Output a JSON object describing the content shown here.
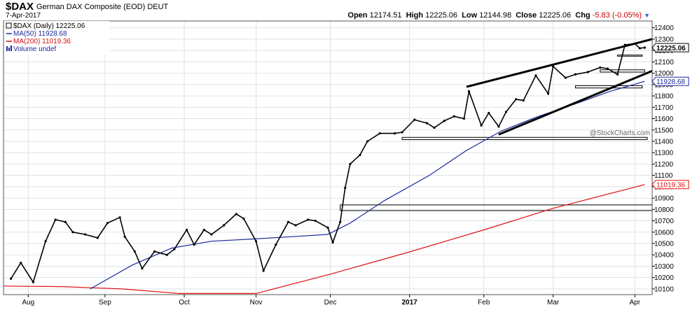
{
  "header": {
    "symbol": "$DAX",
    "description": "German DAX Composite (EOD) DEUT",
    "date": "7-Apr-2017",
    "open_label": "Open",
    "open": "12174.51",
    "high_label": "High",
    "high": "12225.06",
    "low_label": "Low",
    "low": "12144.98",
    "close_label": "Close",
    "close": "12225.06",
    "chg_label": "Chg",
    "chg": "-5.83 (-0.05%)",
    "chg_icon": "triangle-down-icon"
  },
  "watermark": "@StockCharts.com",
  "legend": [
    {
      "text": "$DAX (Daily) 12225.06",
      "color": "#000000",
      "icon": "candle-icon"
    },
    {
      "text": "MA(50) 11928.68",
      "color": "#1a2a9c",
      "icon": "line-icon"
    },
    {
      "text": "MA(200) 11019.36",
      "color": "#cc1111",
      "icon": "line-icon"
    },
    {
      "text": "Volume undef",
      "color": "#1a2a9c",
      "icon": "bars-icon"
    }
  ],
  "colors": {
    "price": "#000000",
    "ma50": "#1a2a9c",
    "ma200": "#e01010",
    "grid": "#dde3ea",
    "plot_bg": "#ffffff"
  },
  "chart_data": {
    "type": "line",
    "title": "$DAX German DAX Composite (EOD) DEUT",
    "ylim": [
      10050,
      12460
    ],
    "y_scale": "linear",
    "grid": true,
    "legend_position": "top-left",
    "y_ticks": [
      10100,
      10200,
      10300,
      10400,
      10500,
      10600,
      10700,
      10800,
      10900,
      11000,
      11100,
      11200,
      11300,
      11400,
      11500,
      11600,
      11700,
      11800,
      11900,
      12000,
      12100,
      12200,
      12300,
      12400
    ],
    "x_ticks": [
      {
        "label": "Aug",
        "date": "2016-08-01",
        "bold": false
      },
      {
        "label": "Sep",
        "date": "2016-09-01",
        "bold": false
      },
      {
        "label": "Oct",
        "date": "2016-10-03",
        "bold": false
      },
      {
        "label": "Nov",
        "date": "2016-11-01",
        "bold": false
      },
      {
        "label": "Dec",
        "date": "2016-12-01",
        "bold": false
      },
      {
        "label": "2017",
        "date": "2017-01-02",
        "bold": true
      },
      {
        "label": "Feb",
        "date": "2017-02-01",
        "bold": false
      },
      {
        "label": "Mar",
        "date": "2017-03-01",
        "bold": false
      },
      {
        "label": "Apr",
        "date": "2017-04-03",
        "bold": false
      }
    ],
    "x_range": [
      "2016-07-22",
      "2017-04-10"
    ],
    "series": [
      {
        "name": "$DAX (Daily) 12225.06",
        "kind": "price",
        "points": [
          {
            "date": "2016-07-25",
            "close": 10190
          },
          {
            "date": "2016-07-29",
            "close": 10330
          },
          {
            "date": "2016-08-03",
            "close": 10160
          },
          {
            "date": "2016-08-08",
            "close": 10520
          },
          {
            "date": "2016-08-12",
            "close": 10710
          },
          {
            "date": "2016-08-16",
            "close": 10690
          },
          {
            "date": "2016-08-19",
            "close": 10600
          },
          {
            "date": "2016-08-24",
            "close": 10580
          },
          {
            "date": "2016-08-29",
            "close": 10550
          },
          {
            "date": "2016-09-02",
            "close": 10680
          },
          {
            "date": "2016-09-07",
            "close": 10730
          },
          {
            "date": "2016-09-09",
            "close": 10560
          },
          {
            "date": "2016-09-13",
            "close": 10430
          },
          {
            "date": "2016-09-16",
            "close": 10280
          },
          {
            "date": "2016-09-21",
            "close": 10430
          },
          {
            "date": "2016-09-26",
            "close": 10400
          },
          {
            "date": "2016-09-29",
            "close": 10450
          },
          {
            "date": "2016-10-04",
            "close": 10620
          },
          {
            "date": "2016-10-07",
            "close": 10490
          },
          {
            "date": "2016-10-11",
            "close": 10620
          },
          {
            "date": "2016-10-14",
            "close": 10580
          },
          {
            "date": "2016-10-19",
            "close": 10660
          },
          {
            "date": "2016-10-24",
            "close": 10760
          },
          {
            "date": "2016-10-27",
            "close": 10720
          },
          {
            "date": "2016-11-01",
            "close": 10520
          },
          {
            "date": "2016-11-04",
            "close": 10260
          },
          {
            "date": "2016-11-09",
            "close": 10490
          },
          {
            "date": "2016-11-14",
            "close": 10690
          },
          {
            "date": "2016-11-17",
            "close": 10660
          },
          {
            "date": "2016-11-22",
            "close": 10710
          },
          {
            "date": "2016-11-25",
            "close": 10700
          },
          {
            "date": "2016-11-30",
            "close": 10640
          },
          {
            "date": "2016-12-02",
            "close": 10510
          },
          {
            "date": "2016-12-05",
            "close": 10690
          },
          {
            "date": "2016-12-07",
            "close": 10990
          },
          {
            "date": "2016-12-09",
            "close": 11200
          },
          {
            "date": "2016-12-13",
            "close": 11280
          },
          {
            "date": "2016-12-16",
            "close": 11400
          },
          {
            "date": "2016-12-21",
            "close": 11470
          },
          {
            "date": "2016-12-27",
            "close": 11470
          },
          {
            "date": "2016-12-30",
            "close": 11480
          },
          {
            "date": "2017-01-04",
            "close": 11590
          },
          {
            "date": "2017-01-09",
            "close": 11560
          },
          {
            "date": "2017-01-12",
            "close": 11520
          },
          {
            "date": "2017-01-16",
            "close": 11580
          },
          {
            "date": "2017-01-20",
            "close": 11620
          },
          {
            "date": "2017-01-24",
            "close": 11600
          },
          {
            "date": "2017-01-26",
            "close": 11840
          },
          {
            "date": "2017-01-31",
            "close": 11540
          },
          {
            "date": "2017-02-03",
            "close": 11650
          },
          {
            "date": "2017-02-07",
            "close": 11530
          },
          {
            "date": "2017-02-10",
            "close": 11660
          },
          {
            "date": "2017-02-14",
            "close": 11770
          },
          {
            "date": "2017-02-17",
            "close": 11760
          },
          {
            "date": "2017-02-22",
            "close": 11980
          },
          {
            "date": "2017-02-27",
            "close": 11820
          },
          {
            "date": "2017-03-01",
            "close": 12060
          },
          {
            "date": "2017-03-06",
            "close": 11960
          },
          {
            "date": "2017-03-10",
            "close": 11990
          },
          {
            "date": "2017-03-15",
            "close": 12010
          },
          {
            "date": "2017-03-20",
            "close": 12050
          },
          {
            "date": "2017-03-23",
            "close": 12040
          },
          {
            "date": "2017-03-27",
            "close": 11990
          },
          {
            "date": "2017-03-30",
            "close": 12250
          },
          {
            "date": "2017-04-03",
            "close": 12260
          },
          {
            "date": "2017-04-05",
            "close": 12220
          },
          {
            "date": "2017-04-07",
            "close": 12225
          }
        ]
      },
      {
        "name": "MA(50) 11928.68",
        "kind": "ma50",
        "points": [
          {
            "date": "2016-08-26",
            "value": 10100
          },
          {
            "date": "2016-09-12",
            "value": 10310
          },
          {
            "date": "2016-09-28",
            "value": 10460
          },
          {
            "date": "2016-10-14",
            "value": 10520
          },
          {
            "date": "2016-10-31",
            "value": 10540
          },
          {
            "date": "2016-11-15",
            "value": 10560
          },
          {
            "date": "2016-11-30",
            "value": 10580
          },
          {
            "date": "2016-12-09",
            "value": 10680
          },
          {
            "date": "2016-12-23",
            "value": 10880
          },
          {
            "date": "2017-01-10",
            "value": 11100
          },
          {
            "date": "2017-01-25",
            "value": 11320
          },
          {
            "date": "2017-02-08",
            "value": 11490
          },
          {
            "date": "2017-02-23",
            "value": 11620
          },
          {
            "date": "2017-03-10",
            "value": 11730
          },
          {
            "date": "2017-03-24",
            "value": 11840
          },
          {
            "date": "2017-04-07",
            "value": 11928.68
          }
        ]
      },
      {
        "name": "MA(200) 11019.36",
        "kind": "ma200",
        "points": [
          {
            "date": "2016-07-22",
            "value": 10125
          },
          {
            "date": "2016-08-15",
            "value": 10120
          },
          {
            "date": "2016-09-08",
            "value": 10100
          },
          {
            "date": "2016-10-01",
            "value": 10060
          },
          {
            "date": "2016-11-01",
            "value": 10060
          },
          {
            "date": "2016-12-01",
            "value": 10230
          },
          {
            "date": "2017-01-01",
            "value": 10420
          },
          {
            "date": "2017-02-01",
            "value": 10620
          },
          {
            "date": "2017-03-01",
            "value": 10810
          },
          {
            "date": "2017-04-07",
            "value": 11019.36
          }
        ]
      }
    ],
    "value_tags": [
      {
        "value": 12225.06,
        "label": "12225.06",
        "kind": "price"
      },
      {
        "value": 11928.68,
        "label": "11928.68",
        "kind": "ma50"
      },
      {
        "value": 11019.36,
        "label": "11019.36",
        "kind": "ma200"
      }
    ],
    "trendlines": [
      {
        "from": [
          "2017-01-25",
          11880
        ],
        "to": [
          "2017-04-10",
          12300
        ]
      },
      {
        "from": [
          "2017-02-07",
          11460
        ],
        "to": [
          "2017-04-10",
          12020
        ]
      }
    ],
    "support_boxes": [
      {
        "from": "2016-12-30",
        "to": "2017-04-08",
        "top": 11435,
        "bottom": 11415
      },
      {
        "from": "2016-12-05",
        "to": "2017-04-10",
        "top": 10840,
        "bottom": 10790
      },
      {
        "from": "2017-03-10",
        "to": "2017-04-06",
        "top": 11890,
        "bottom": 11870
      },
      {
        "from": "2017-03-20",
        "to": "2017-04-07",
        "top": 12030,
        "bottom": 12010
      },
      {
        "from": "2017-03-27",
        "to": "2017-04-06",
        "top": 12160,
        "bottom": 12150
      }
    ]
  }
}
